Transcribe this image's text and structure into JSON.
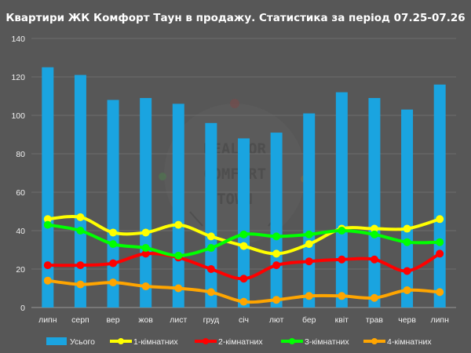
{
  "chart_data": {
    "type": "bar",
    "title": "Квартири ЖК Комфорт Таун в продажу. Статистика за період 07.25-07.26",
    "xlabel": "",
    "ylabel": "",
    "ylim": [
      0,
      140
    ],
    "yticks": [
      0,
      20,
      40,
      60,
      80,
      100,
      120,
      140
    ],
    "grid": true,
    "legend_position": "bottom",
    "categories": [
      "липн",
      "серп",
      "вер",
      "жов",
      "лист",
      "груд",
      "січ",
      "лют",
      "бер",
      "квіт",
      "трав",
      "черв",
      "липн"
    ],
    "series": [
      {
        "name": "Усього",
        "type": "bar",
        "color": "#1aa4e0",
        "values": [
          125,
          121,
          108,
          109,
          106,
          96,
          88,
          91,
          101,
          112,
          109,
          103,
          116
        ]
      },
      {
        "name": "1-кімнатних",
        "type": "line",
        "color": "#ffff00",
        "values": [
          46,
          47,
          39,
          39,
          43,
          37,
          32,
          28,
          33,
          41,
          41,
          41,
          46
        ]
      },
      {
        "name": "2-кімнатних",
        "type": "line",
        "color": "#ff0000",
        "values": [
          22,
          22,
          23,
          28,
          26,
          20,
          15,
          22,
          24,
          25,
          25,
          19,
          28
        ]
      },
      {
        "name": "3-кімнатних",
        "type": "line",
        "color": "#00ff00",
        "values": [
          43,
          40,
          33,
          31,
          27,
          31,
          38,
          37,
          38,
          40,
          38,
          34,
          34
        ]
      },
      {
        "name": "4-кімнатних",
        "type": "line",
        "color": "#ffa500",
        "values": [
          14,
          12,
          13,
          11,
          10,
          8,
          3,
          4,
          6,
          6,
          5,
          9,
          8
        ]
      }
    ]
  },
  "watermark": {
    "lines": [
      "REALTOR",
      "COMFORT",
      "TOWN"
    ]
  }
}
